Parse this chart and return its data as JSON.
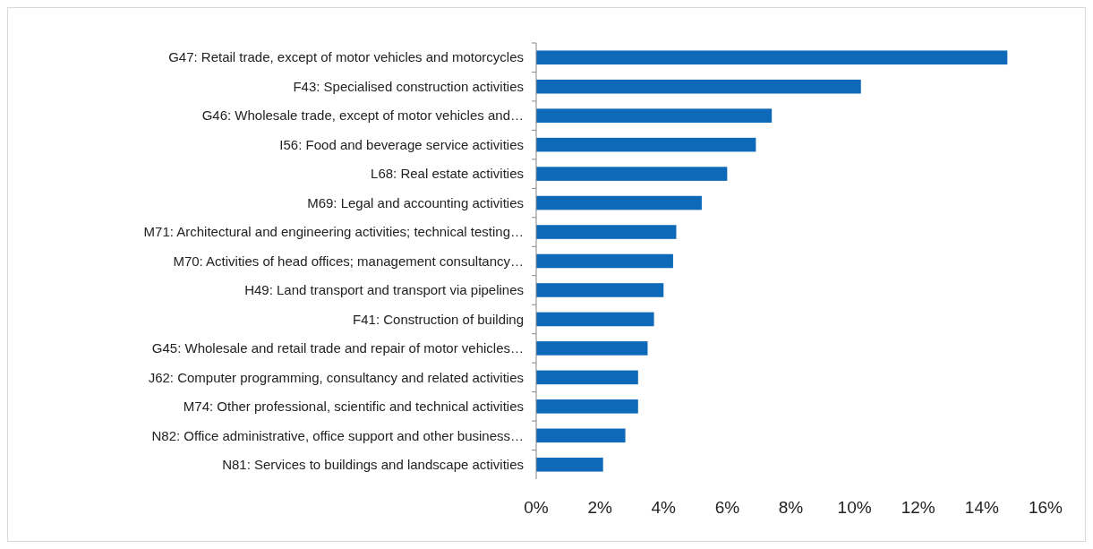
{
  "chart_data": {
    "type": "bar",
    "orientation": "horizontal",
    "color": "#0e6ab8",
    "grid": false,
    "categories": [
      "G47: Retail trade, except of motor vehicles and motorcycles",
      "F43: Specialised construction activities",
      "G46: Wholesale trade, except of motor vehicles and…",
      "I56: Food and beverage service activities",
      "L68: Real estate activities",
      "M69: Legal and accounting activities",
      "M71: Architectural and engineering activities; technical testing…",
      "M70: Activities of head offices; management consultancy…",
      "H49: Land transport and transport via pipelines",
      "F41: Construction of building",
      "G45: Wholesale and retail trade and repair of motor vehicles…",
      "J62: Computer programming, consultancy and related activities",
      "M74: Other professional, scientific and technical activities",
      "N82: Office administrative, office support and other business…",
      "N81: Services to buildings and landscape activities"
    ],
    "values": [
      14.8,
      10.2,
      7.4,
      6.9,
      6.0,
      5.2,
      4.4,
      4.3,
      4.0,
      3.7,
      3.5,
      3.2,
      3.2,
      2.8,
      2.1
    ],
    "xlim": [
      0,
      16
    ],
    "xticks": [
      {
        "value": 0,
        "label": "0%"
      },
      {
        "value": 2,
        "label": "2%"
      },
      {
        "value": 4,
        "label": "4%"
      },
      {
        "value": 6,
        "label": "6%"
      },
      {
        "value": 8,
        "label": "8%"
      },
      {
        "value": 10,
        "label": "10%"
      },
      {
        "value": 12,
        "label": "12%"
      },
      {
        "value": 14,
        "label": "14%"
      },
      {
        "value": 16,
        "label": "16%"
      }
    ]
  }
}
